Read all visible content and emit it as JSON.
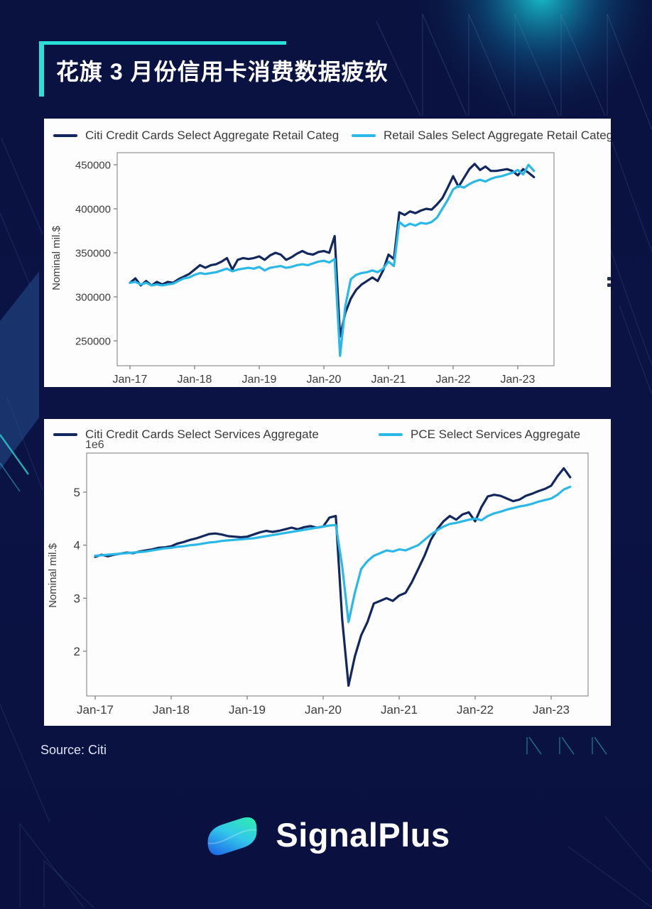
{
  "header": {
    "title": "花旗 3 月份信用卡消费数据疲软"
  },
  "footer": {
    "source": "Source: Citi",
    "brand": "SignalPlus"
  },
  "colors": {
    "background_navy": "#0a1240",
    "accent_teal": "#2bdfd9",
    "dark_line": "#12275d",
    "cyan_line": "#29b8e8",
    "panel_white": "#fdfdfd"
  },
  "chart_data": [
    {
      "type": "line",
      "position": "top",
      "ylabel": "Nominal mil.$",
      "x_unit": "month",
      "x_range": [
        "Jan-2017",
        "Apr-2023"
      ],
      "x_ticks": [
        "Jan-17",
        "Jan-18",
        "Jan-19",
        "Jan-20",
        "Jan-21",
        "Jan-22",
        "Jan-23"
      ],
      "y_ticks": [
        {
          "label": "250000",
          "value": 250000
        },
        {
          "label": "300000",
          "value": 300000
        },
        {
          "label": "350000",
          "value": 350000
        },
        {
          "label": "400000",
          "value": 400000
        },
        {
          "label": "450000",
          "value": 450000
        }
      ],
      "ylim": [
        230000,
        462000
      ],
      "grid": false,
      "legend_position": "top",
      "series": [
        {
          "name": "Citi Credit Cards Select Aggregate Retail Categ",
          "color": "#12275d",
          "values": [
            316000,
            321000,
            313000,
            318000,
            313000,
            317000,
            314000,
            317000,
            316000,
            320000,
            323000,
            326000,
            331000,
            336000,
            333000,
            336000,
            337000,
            340000,
            344000,
            331000,
            342000,
            344000,
            343000,
            344000,
            346000,
            342000,
            347000,
            350000,
            348000,
            342000,
            345000,
            349000,
            352000,
            349000,
            348000,
            351000,
            352000,
            350000,
            369000,
            255000,
            282000,
            298000,
            308000,
            314000,
            318000,
            322000,
            318000,
            330000,
            348000,
            343000,
            396000,
            393000,
            397000,
            395000,
            398000,
            400000,
            399000,
            405000,
            412000,
            424000,
            437000,
            425000,
            435000,
            445000,
            451000,
            444000,
            448000,
            443000,
            443000,
            444000,
            445000,
            443000,
            438000,
            445000,
            441000,
            436000
          ]
        },
        {
          "name": "Retail Sales Select Aggregate Retail Categ",
          "color": "#29b8e8",
          "values": [
            316000,
            317000,
            314000,
            316000,
            313000,
            314000,
            313000,
            314000,
            315000,
            318000,
            321000,
            322000,
            325000,
            327000,
            326000,
            327000,
            328000,
            330000,
            332000,
            329000,
            331000,
            332000,
            333000,
            332000,
            334000,
            330000,
            333000,
            334000,
            335000,
            333000,
            334000,
            336000,
            337000,
            336000,
            338000,
            340000,
            341000,
            339000,
            343000,
            233000,
            290000,
            320000,
            325000,
            327000,
            328000,
            330000,
            328000,
            332000,
            340000,
            335000,
            385000,
            380000,
            383000,
            381000,
            384000,
            383000,
            385000,
            390000,
            400000,
            410000,
            422000,
            426000,
            424000,
            428000,
            431000,
            433000,
            431000,
            434000,
            436000,
            437000,
            439000,
            441000,
            444000,
            439000,
            450000,
            443000
          ]
        }
      ]
    },
    {
      "type": "line",
      "position": "bottom",
      "ylabel": "Nominal mil.$",
      "y_scale_label": "1e6",
      "x_unit": "month",
      "x_range": [
        "Jan-2017",
        "Apr-2023"
      ],
      "x_ticks": [
        "Jan-17",
        "Jan-18",
        "Jan-19",
        "Jan-20",
        "Jan-21",
        "Jan-22",
        "Jan-23"
      ],
      "y_ticks": [
        {
          "label": "2",
          "value": 2
        },
        {
          "label": "3",
          "value": 3
        },
        {
          "label": "4",
          "value": 4
        },
        {
          "label": "5",
          "value": 5
        }
      ],
      "ylim": [
        1.2,
        5.7
      ],
      "grid": false,
      "legend_position": "top",
      "series": [
        {
          "name": "Citi Credit Cards Select Services Aggregate",
          "color": "#12275d",
          "values": [
            3.78,
            3.82,
            3.79,
            3.82,
            3.84,
            3.86,
            3.85,
            3.88,
            3.9,
            3.92,
            3.95,
            3.96,
            3.98,
            4.03,
            4.06,
            4.1,
            4.13,
            4.17,
            4.21,
            4.22,
            4.2,
            4.17,
            4.16,
            4.15,
            4.16,
            4.2,
            4.24,
            4.27,
            4.25,
            4.27,
            4.3,
            4.33,
            4.3,
            4.34,
            4.36,
            4.33,
            4.35,
            4.52,
            4.55,
            2.6,
            1.35,
            1.9,
            2.3,
            2.55,
            2.9,
            2.95,
            3.0,
            2.95,
            3.05,
            3.1,
            3.3,
            3.55,
            3.8,
            4.1,
            4.3,
            4.45,
            4.55,
            4.48,
            4.58,
            4.62,
            4.45,
            4.72,
            4.92,
            4.95,
            4.93,
            4.88,
            4.83,
            4.86,
            4.93,
            4.97,
            5.02,
            5.06,
            5.12,
            5.3,
            5.45,
            5.28
          ]
        },
        {
          "name": "PCE Select Services Aggregate",
          "color": "#29b8e8",
          "values": [
            3.8,
            3.81,
            3.82,
            3.83,
            3.84,
            3.85,
            3.86,
            3.87,
            3.88,
            3.9,
            3.92,
            3.94,
            3.95,
            3.97,
            3.98,
            4.0,
            4.01,
            4.03,
            4.05,
            4.06,
            4.08,
            4.09,
            4.1,
            4.11,
            4.12,
            4.13,
            4.15,
            4.17,
            4.19,
            4.21,
            4.23,
            4.25,
            4.27,
            4.29,
            4.31,
            4.33,
            4.35,
            4.37,
            4.38,
            3.6,
            2.55,
            3.1,
            3.55,
            3.7,
            3.8,
            3.85,
            3.9,
            3.88,
            3.92,
            3.9,
            3.95,
            4.0,
            4.1,
            4.2,
            4.28,
            4.35,
            4.4,
            4.42,
            4.45,
            4.48,
            4.5,
            4.47,
            4.55,
            4.6,
            4.63,
            4.67,
            4.7,
            4.73,
            4.75,
            4.78,
            4.82,
            4.85,
            4.88,
            4.95,
            5.05,
            5.1
          ]
        }
      ]
    }
  ]
}
